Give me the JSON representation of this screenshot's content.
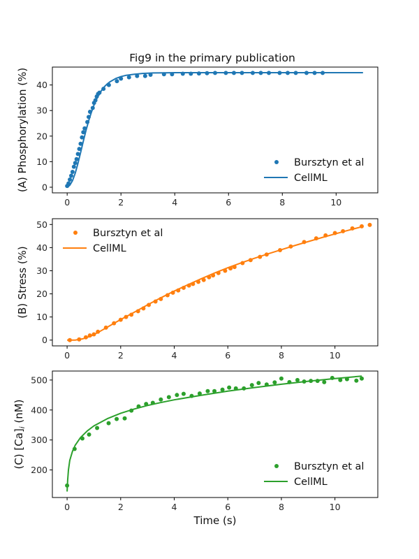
{
  "figure_title": "Fig9 in the primary publication",
  "chart_data": [
    {
      "type": "line",
      "panel": "A",
      "title": "Fig9 in the primary publication",
      "xlabel": "",
      "ylabel": "(A) Phosphorylation (%)",
      "xlim": [
        -0.55,
        11.55
      ],
      "ylim": [
        -2.2,
        47.0
      ],
      "xticks": [
        0,
        2,
        4,
        6,
        8,
        10
      ],
      "yticks": [
        0,
        10,
        20,
        30,
        40
      ],
      "color": "#1f77b4",
      "legend_position": "lower-right",
      "series": [
        {
          "name": "Bursztyn et al",
          "kind": "scatter",
          "x": [
            0.0,
            0.05,
            0.1,
            0.15,
            0.2,
            0.25,
            0.3,
            0.35,
            0.4,
            0.45,
            0.5,
            0.55,
            0.6,
            0.65,
            0.75,
            0.8,
            0.85,
            0.95,
            1.0,
            1.05,
            1.1,
            1.15,
            1.2,
            1.35,
            1.55,
            1.85,
            2.0,
            2.3,
            2.6,
            2.9,
            3.1,
            3.6,
            3.9,
            4.3,
            4.6,
            4.9,
            5.2,
            5.5,
            5.9,
            6.2,
            6.5,
            6.9,
            7.2,
            7.5,
            7.9,
            8.2,
            8.5,
            8.9,
            9.2,
            9.5
          ],
          "y": [
            0.5,
            1.5,
            3.0,
            4.5,
            6.0,
            8.0,
            9.5,
            11.0,
            13.0,
            15.0,
            17.0,
            19.5,
            21.5,
            23.0,
            25.5,
            27.5,
            29.5,
            31.0,
            33.0,
            34.0,
            35.5,
            36.5,
            37.0,
            38.5,
            40.0,
            41.5,
            42.5,
            43.0,
            43.5,
            43.5,
            44.0,
            44.2,
            44.2,
            44.4,
            44.4,
            44.5,
            44.6,
            44.7,
            44.7,
            44.7,
            44.7,
            44.7,
            44.7,
            44.7,
            44.7,
            44.7,
            44.7,
            44.7,
            44.7,
            44.7
          ]
        },
        {
          "name": "CellML",
          "kind": "line",
          "x": [
            0.0,
            0.1,
            0.2,
            0.3,
            0.4,
            0.5,
            0.6,
            0.7,
            0.8,
            0.9,
            1.0,
            1.1,
            1.2,
            1.3,
            1.4,
            1.5,
            1.6,
            1.8,
            2.0,
            2.2,
            2.5,
            2.8,
            3.2,
            3.6,
            4.0,
            5.0,
            6.0,
            7.0,
            8.0,
            9.0,
            10.0,
            11.0
          ],
          "y": [
            0.0,
            0.8,
            2.6,
            5.5,
            9.3,
            13.6,
            18.0,
            22.2,
            26.0,
            29.3,
            32.2,
            34.6,
            36.6,
            38.2,
            39.5,
            40.5,
            41.3,
            42.5,
            43.3,
            43.8,
            44.2,
            44.5,
            44.7,
            44.75,
            44.8,
            44.8,
            44.8,
            44.8,
            44.8,
            44.8,
            44.8,
            44.8
          ]
        }
      ]
    },
    {
      "type": "line",
      "panel": "B",
      "xlabel": "",
      "ylabel": "(B) Stress (%)",
      "xlim": [
        -0.55,
        11.6
      ],
      "ylim": [
        -2.5,
        52.5
      ],
      "xticks": [
        0,
        2,
        4,
        6,
        8,
        10
      ],
      "yticks": [
        0,
        10,
        20,
        30,
        40,
        50
      ],
      "color": "#ff7f0e",
      "legend_position": "upper-left",
      "series": [
        {
          "name": "Bursztyn et al",
          "kind": "scatter",
          "x": [
            0.1,
            0.45,
            0.7,
            0.85,
            1.0,
            1.15,
            1.45,
            1.75,
            2.0,
            2.2,
            2.4,
            2.65,
            2.85,
            3.05,
            3.3,
            3.5,
            3.75,
            3.95,
            4.15,
            4.35,
            4.55,
            4.7,
            4.9,
            5.1,
            5.3,
            5.45,
            5.65,
            5.9,
            6.1,
            6.25,
            6.55,
            6.85,
            7.2,
            7.45,
            7.95,
            8.35,
            8.85,
            9.3,
            9.65,
            10.0,
            10.3,
            10.65,
            11.0,
            11.3
          ],
          "y": [
            0.0,
            0.3,
            1.2,
            2.0,
            2.5,
            3.6,
            5.4,
            7.3,
            8.8,
            10.0,
            11.0,
            12.5,
            13.7,
            15.2,
            16.7,
            17.8,
            19.4,
            20.5,
            21.5,
            22.6,
            23.6,
            24.3,
            25.2,
            26.0,
            27.2,
            28.0,
            29.0,
            30.0,
            31.0,
            31.6,
            33.3,
            34.6,
            36.0,
            37.0,
            38.9,
            40.5,
            42.4,
            44.0,
            45.3,
            46.3,
            47.1,
            48.3,
            49.2,
            49.8
          ]
        },
        {
          "name": "CellML",
          "kind": "line",
          "x": [
            0.0,
            0.3,
            0.6,
            0.9,
            1.2,
            1.5,
            1.8,
            2.1,
            2.5,
            3.0,
            3.5,
            4.0,
            4.5,
            5.0,
            5.5,
            6.0,
            6.5,
            7.0,
            7.5,
            8.0,
            8.5,
            9.0,
            9.5,
            10.0,
            10.5,
            11.0
          ],
          "y": [
            0.0,
            0.0,
            0.6,
            1.8,
            3.6,
            5.6,
            7.6,
            9.5,
            12.0,
            15.2,
            18.3,
            21.2,
            23.9,
            26.5,
            29.0,
            31.3,
            33.4,
            35.4,
            37.3,
            39.1,
            40.9,
            42.6,
            44.3,
            45.9,
            47.5,
            49.0
          ]
        }
      ]
    },
    {
      "type": "line",
      "panel": "C",
      "xlabel": "Time (s)",
      "ylabel": "(C) [Ca]_i (nM)",
      "ylabel_parts": [
        "(C) [Ca]",
        "i",
        " (nM)"
      ],
      "xlim": [
        -0.55,
        11.6
      ],
      "ylim": [
        108,
        530
      ],
      "xticks": [
        0,
        2,
        4,
        6,
        8,
        10
      ],
      "yticks": [
        200,
        300,
        400,
        500
      ],
      "color": "#2ca02c",
      "legend_position": "lower-right",
      "series": [
        {
          "name": "Bursztyn et al",
          "kind": "scatter",
          "x": [
            0.0,
            0.28,
            0.57,
            0.82,
            1.12,
            1.55,
            1.85,
            2.15,
            2.4,
            2.67,
            2.95,
            3.2,
            3.5,
            3.8,
            4.1,
            4.35,
            4.65,
            4.95,
            5.25,
            5.5,
            5.8,
            6.05,
            6.3,
            6.6,
            6.9,
            7.15,
            7.45,
            7.75,
            8.0,
            8.3,
            8.6,
            8.85,
            9.1,
            9.35,
            9.6,
            9.9,
            10.2,
            10.45,
            10.8,
            11.0
          ],
          "y": [
            148,
            270,
            305,
            318,
            340,
            356,
            370,
            372,
            398,
            412,
            420,
            424,
            435,
            443,
            450,
            454,
            447,
            455,
            463,
            463,
            468,
            475,
            472,
            472,
            483,
            490,
            485,
            492,
            505,
            493,
            500,
            495,
            497,
            497,
            493,
            507,
            500,
            503,
            498,
            505
          ]
        },
        {
          "name": "CellML",
          "kind": "line",
          "x": [
            0.0,
            0.02,
            0.05,
            0.1,
            0.2,
            0.3,
            0.5,
            0.75,
            1.0,
            1.5,
            2.0,
            2.5,
            3.0,
            3.5,
            4.0,
            5.0,
            6.0,
            7.0,
            8.0,
            9.0,
            10.0,
            11.0
          ],
          "y": [
            128,
            165,
            200,
            232,
            262,
            282,
            308,
            330,
            347,
            371,
            389,
            403,
            415,
            425,
            434,
            449,
            463,
            475,
            486,
            496,
            505,
            513
          ]
        }
      ]
    }
  ]
}
